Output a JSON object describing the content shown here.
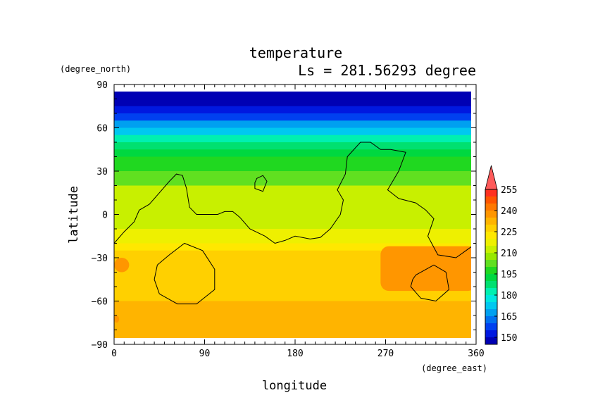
{
  "chart_data": {
    "type": "heatmap",
    "title": "temperature",
    "subtitle": "Ls = 281.56293 degree",
    "xlabel": "longitude",
    "ylabel": "latitude",
    "x_unit": "(degree_east)",
    "y_unit": "(degree_north)",
    "xlim": [
      0,
      360
    ],
    "ylim": [
      -90,
      90
    ],
    "x_ticks": [
      "0",
      "90",
      "180",
      "270",
      "360"
    ],
    "x_tick_values": [
      0,
      90,
      180,
      270,
      360
    ],
    "y_ticks": [
      "90",
      "60",
      "30",
      "0",
      "−30",
      "−60",
      "−90"
    ],
    "y_tick_values": [
      90,
      60,
      30,
      0,
      -30,
      -60,
      -90
    ],
    "colorbar": {
      "levels": [
        145,
        150,
        155,
        160,
        165,
        170,
        175,
        180,
        185,
        190,
        195,
        200,
        205,
        210,
        215,
        220,
        225,
        230,
        235,
        240,
        245,
        250,
        255,
        260
      ],
      "colors": [
        "#0000b4",
        "#0018e0",
        "#0040f0",
        "#0070f0",
        "#00a0f0",
        "#00c8f0",
        "#00e8e0",
        "#00f0b0",
        "#00e070",
        "#00d840",
        "#20d820",
        "#60e020",
        "#98e800",
        "#c8f000",
        "#eef000",
        "#ffe800",
        "#ffd000",
        "#ffb400",
        "#ff9600",
        "#ff7800",
        "#ff5400",
        "#ff3020",
        "#ff5a5a"
      ],
      "tick_labels": [
        "255",
        "240",
        "225",
        "210",
        "195",
        "180",
        "165",
        "150"
      ],
      "tick_values": [
        255,
        240,
        225,
        210,
        195,
        180,
        165,
        150
      ],
      "extend": "max"
    },
    "lat_profile": [
      {
        "lat": 86,
        "value": 147
      },
      {
        "lat": 75,
        "value": 151
      },
      {
        "lat": 70,
        "value": 157
      },
      {
        "lat": 65,
        "value": 165
      },
      {
        "lat": 60,
        "value": 173
      },
      {
        "lat": 55,
        "value": 180
      },
      {
        "lat": 50,
        "value": 186
      },
      {
        "lat": 45,
        "value": 191
      },
      {
        "lat": 40,
        "value": 196
      },
      {
        "lat": 30,
        "value": 203
      },
      {
        "lat": 20,
        "value": 210
      },
      {
        "lat": 5,
        "value": 214
      },
      {
        "lat": -10,
        "value": 218
      },
      {
        "lat": -20,
        "value": 222
      },
      {
        "lat": -25,
        "value": 227
      },
      {
        "lat": -60,
        "value": 230
      },
      {
        "lat": -87,
        "value": 231
      }
    ],
    "warm_regions": [
      {
        "name": "southern warm region east",
        "lon": [
          265,
          360
        ],
        "lat": [
          -53,
          -22
        ],
        "value": 236
      },
      {
        "name": "southern warm region west",
        "lon": [
          0,
          15
        ],
        "lat": [
          -40,
          -30
        ],
        "value": 236
      },
      {
        "name": "southern warm region west edge",
        "lon": [
          0,
          5
        ],
        "lat": [
          -75,
          -70
        ],
        "value": 236
      }
    ],
    "topography_contour": [
      [
        0,
        -20
      ],
      [
        10,
        -12
      ],
      [
        20,
        -5
      ],
      [
        25,
        3
      ],
      [
        35,
        7
      ],
      [
        45,
        15
      ],
      [
        55,
        23
      ],
      [
        62,
        28
      ],
      [
        68,
        27
      ],
      [
        72,
        18
      ],
      [
        75,
        5
      ],
      [
        82,
        0
      ],
      [
        95,
        0
      ],
      [
        103,
        0
      ],
      [
        110,
        2
      ],
      [
        118,
        2
      ],
      [
        125,
        -2
      ],
      [
        135,
        -10
      ],
      [
        150,
        -15
      ],
      [
        160,
        -20
      ],
      [
        170,
        -18
      ],
      [
        180,
        -15
      ],
      [
        195,
        -17
      ],
      [
        205,
        -16
      ],
      [
        215,
        -10
      ],
      [
        225,
        0
      ],
      [
        228,
        10
      ],
      [
        222,
        17
      ],
      [
        230,
        28
      ],
      [
        232,
        40
      ],
      [
        245,
        50
      ],
      [
        255,
        50
      ],
      [
        265,
        45
      ],
      [
        275,
        45
      ],
      [
        290,
        43
      ],
      [
        283,
        30
      ],
      [
        272,
        17
      ],
      [
        283,
        11
      ],
      [
        300,
        8
      ],
      [
        310,
        3
      ],
      [
        318,
        -3
      ],
      [
        312,
        -15
      ],
      [
        322,
        -28
      ],
      [
        340,
        -30
      ],
      [
        350,
        -25
      ],
      [
        360,
        -20
      ]
    ],
    "contour_loops": [
      [
        [
          142,
          25
        ],
        [
          148,
          27
        ],
        [
          152,
          23
        ],
        [
          148,
          16
        ],
        [
          140,
          18
        ],
        [
          140,
          22
        ]
      ],
      [
        [
          55,
          -28
        ],
        [
          70,
          -20
        ],
        [
          88,
          -25
        ],
        [
          100,
          -38
        ],
        [
          100,
          -52
        ],
        [
          82,
          -62
        ],
        [
          63,
          -62
        ],
        [
          45,
          -55
        ],
        [
          40,
          -45
        ],
        [
          43,
          -35
        ]
      ],
      [
        [
          300,
          -42
        ],
        [
          318,
          -35
        ],
        [
          330,
          -40
        ],
        [
          333,
          -52
        ],
        [
          320,
          -60
        ],
        [
          305,
          -58
        ],
        [
          295,
          -50
        ],
        [
          297,
          -45
        ]
      ]
    ]
  }
}
